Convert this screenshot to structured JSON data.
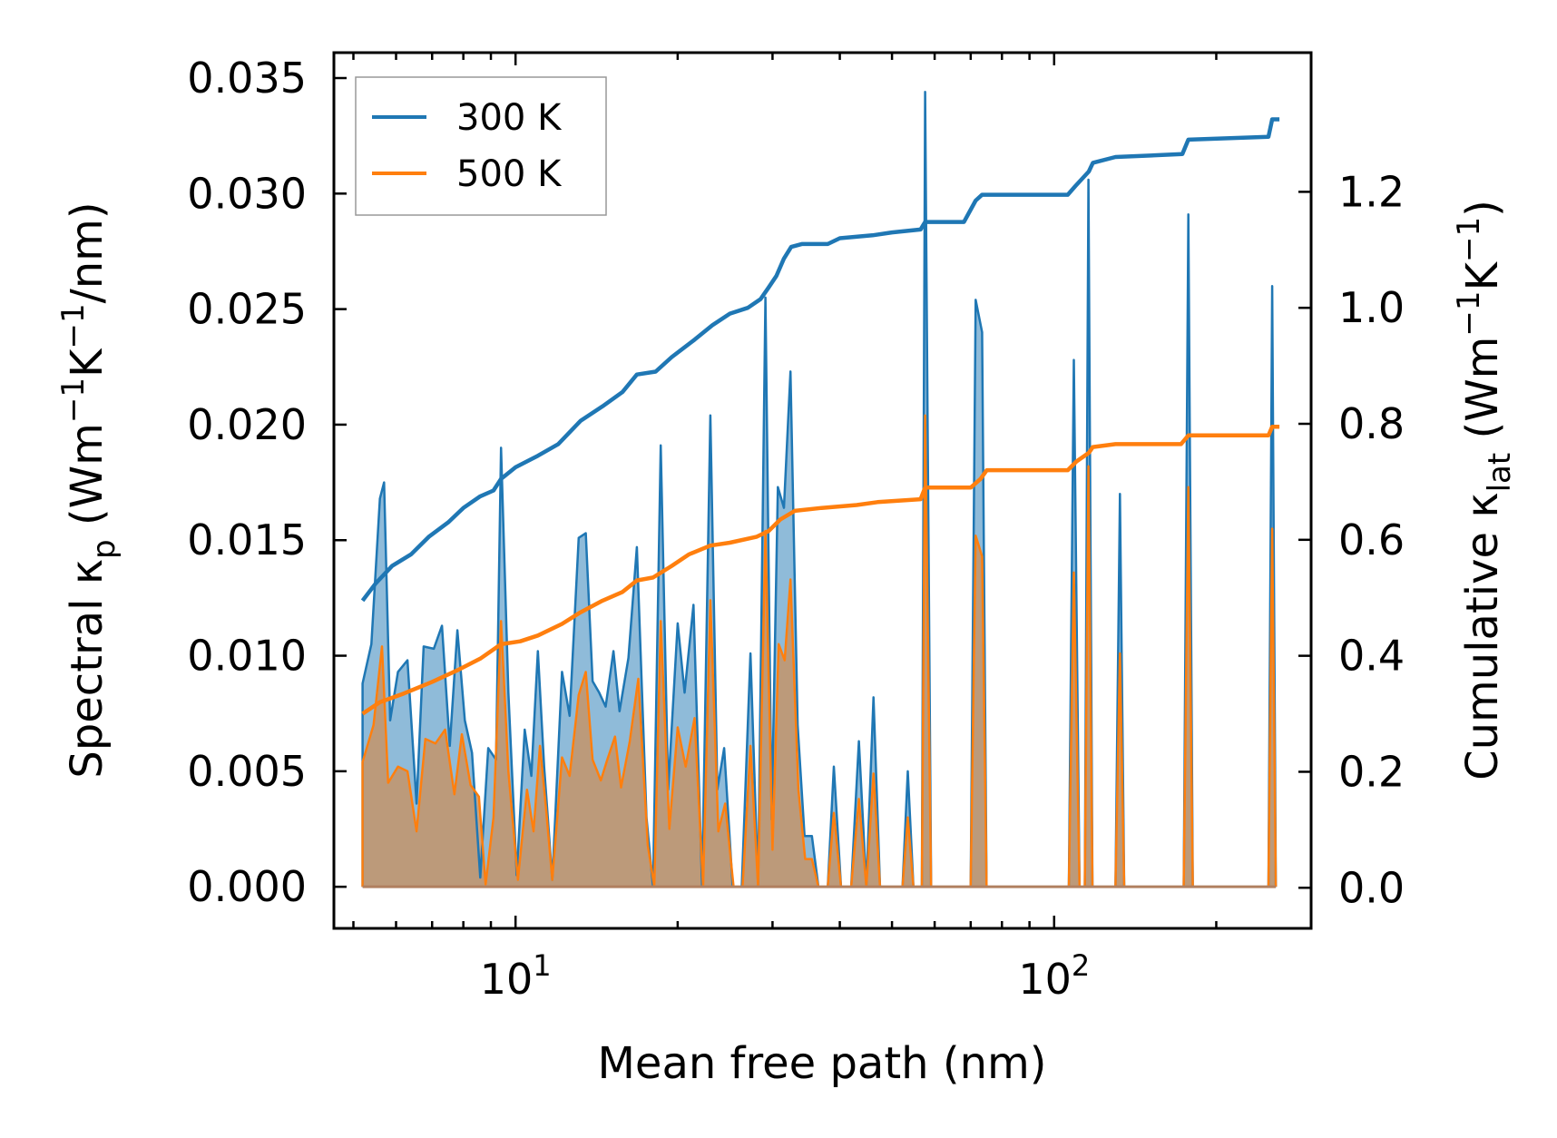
{
  "chart_data": {
    "type": "line",
    "x_scale": "log",
    "xlim": [
      4.6,
      300
    ],
    "xlabel": "Mean free path (nm)",
    "x_major_ticks": [
      10,
      100
    ],
    "x_tick_labels": {
      "base": "10",
      "exponents": [
        "1",
        "2"
      ]
    },
    "left_axis": {
      "ylim": [
        -0.0018,
        0.0361
      ],
      "ticks": [
        0,
        0.005,
        0.01,
        0.015,
        0.02,
        0.025,
        0.03,
        0.035
      ],
      "tick_labels": [
        "0.000",
        "0.005",
        "0.010",
        "0.015",
        "0.020",
        "0.025",
        "0.030",
        "0.035"
      ],
      "ylabel": {
        "pre": "Spectral κ",
        "sub": "p",
        "mid1": " (Wm",
        "sup1": "−1",
        "mid2": "K",
        "sup2": "−1",
        "post": "/nm)"
      }
    },
    "right_axis": {
      "ylim": [
        -0.07,
        1.44
      ],
      "ticks": [
        0,
        0.2,
        0.4,
        0.6,
        0.8,
        1.0,
        1.2
      ],
      "tick_labels": [
        "0.0",
        "0.2",
        "0.4",
        "0.6",
        "0.8",
        "1.0",
        "1.2"
      ],
      "ylabel": {
        "pre": "Cumulative κ",
        "sub": "lat",
        "mid1": " (Wm",
        "sup1": "−1",
        "mid2": "K",
        "sup2": "−1",
        "post": ")"
      }
    },
    "legend": {
      "position": "top-left",
      "entries": [
        "300 K",
        "500 K"
      ]
    },
    "series": [
      {
        "name": "300 K",
        "color": "#1f77b4",
        "fill_color": "#1f77b4",
        "axis": "left",
        "kind": "spectral",
        "points": [
          [
            5.2,
            0
          ],
          [
            5.2,
            0.0088
          ],
          [
            5.4,
            0.0105
          ],
          [
            5.6,
            0.0168
          ],
          [
            5.7,
            0.0175
          ],
          [
            5.85,
            0.0072
          ],
          [
            6.05,
            0.0093
          ],
          [
            6.3,
            0.0098
          ],
          [
            6.55,
            0.0036
          ],
          [
            6.75,
            0.0104
          ],
          [
            7.05,
            0.0103
          ],
          [
            7.3,
            0.0113
          ],
          [
            7.55,
            0.0061
          ],
          [
            7.8,
            0.0111
          ],
          [
            8.05,
            0.0072
          ],
          [
            8.3,
            0.0058
          ],
          [
            8.6,
            0.0004
          ],
          [
            8.9,
            0.006
          ],
          [
            9.2,
            0.0055
          ],
          [
            9.4,
            0.019
          ],
          [
            9.7,
            0.0084
          ],
          [
            10.05,
            0.0005
          ],
          [
            10.4,
            0.0068
          ],
          [
            10.7,
            0.0048
          ],
          [
            11.0,
            0.0102
          ],
          [
            11.3,
            0.0052
          ],
          [
            11.7,
            0.0003
          ],
          [
            12.2,
            0.0093
          ],
          [
            12.6,
            0.0074
          ],
          [
            13.1,
            0.0151
          ],
          [
            13.5,
            0.0153
          ],
          [
            13.9,
            0.0089
          ],
          [
            14.3,
            0.0084
          ],
          [
            14.7,
            0.0078
          ],
          [
            15.2,
            0.0102
          ],
          [
            15.6,
            0.0076
          ],
          [
            16.2,
            0.0099
          ],
          [
            16.8,
            0.0147
          ],
          [
            17.5,
            0.003
          ],
          [
            18.0,
            0
          ],
          [
            18.6,
            0.0191
          ],
          [
            19.2,
            0.0042
          ],
          [
            20.0,
            0.0114
          ],
          [
            20.6,
            0.0084
          ],
          [
            21.4,
            0.0122
          ],
          [
            22.2,
            0
          ],
          [
            23.0,
            0.0204
          ],
          [
            23.7,
            0.0042
          ],
          [
            24.4,
            0.006
          ],
          [
            25.3,
            0
          ],
          [
            26.3,
            0
          ],
          [
            27.3,
            0.0101
          ],
          [
            28.2,
            0
          ],
          [
            29.1,
            0.0255
          ],
          [
            29.9,
            0.0029
          ],
          [
            30.7,
            0.0173
          ],
          [
            31.5,
            0.0164
          ],
          [
            32.4,
            0.0223
          ],
          [
            33.4,
            0.007
          ],
          [
            34.4,
            0.0022
          ],
          [
            35.5,
            0.0022
          ],
          [
            36.5,
            0
          ],
          [
            38.0,
            0
          ],
          [
            39.0,
            0.0052
          ],
          [
            40.2,
            0
          ],
          [
            42.0,
            0
          ],
          [
            43.4,
            0.0063
          ],
          [
            44.8,
            0
          ],
          [
            46.2,
            0.0082
          ],
          [
            47.5,
            0
          ],
          [
            52.3,
            0
          ],
          [
            53.5,
            0.005
          ],
          [
            54.8,
            0
          ],
          [
            56.8,
            0
          ],
          [
            57.6,
            0.0344
          ],
          [
            59.1,
            0
          ],
          [
            70.0,
            0
          ],
          [
            71.5,
            0.0254
          ],
          [
            73.5,
            0.024
          ],
          [
            74.9,
            0
          ],
          [
            106.5,
            0
          ],
          [
            108.8,
            0.0228
          ],
          [
            111.5,
            0
          ],
          [
            114.0,
            0
          ],
          [
            115.8,
            0.0306
          ],
          [
            117.8,
            0
          ],
          [
            130.0,
            0
          ],
          [
            132.5,
            0.017
          ],
          [
            134.9,
            0
          ],
          [
            174.0,
            0
          ],
          [
            177.5,
            0.0291
          ],
          [
            180.9,
            0
          ],
          [
            250.0,
            0
          ],
          [
            254.0,
            0.026
          ],
          [
            258.0,
            0
          ]
        ]
      },
      {
        "name": "500 K",
        "color": "#ff7f0e",
        "fill_color": "#c49468",
        "axis": "left",
        "kind": "spectral",
        "points": [
          [
            5.2,
            0
          ],
          [
            5.2,
            0.0054
          ],
          [
            5.45,
            0.007
          ],
          [
            5.65,
            0.0104
          ],
          [
            5.8,
            0.0045
          ],
          [
            6.05,
            0.0052
          ],
          [
            6.3,
            0.005
          ],
          [
            6.55,
            0.0024
          ],
          [
            6.8,
            0.0064
          ],
          [
            7.1,
            0.0062
          ],
          [
            7.4,
            0.0068
          ],
          [
            7.7,
            0.004
          ],
          [
            7.95,
            0.0066
          ],
          [
            8.25,
            0.0044
          ],
          [
            8.55,
            0.0039
          ],
          [
            8.8,
            0.0001
          ],
          [
            9.1,
            0.003
          ],
          [
            9.4,
            0.0115
          ],
          [
            9.7,
            0.005
          ],
          [
            10.1,
            0.0003
          ],
          [
            10.5,
            0.0042
          ],
          [
            10.8,
            0.0024
          ],
          [
            11.1,
            0.0061
          ],
          [
            11.4,
            0.0033
          ],
          [
            11.7,
            0.0003
          ],
          [
            12.2,
            0.0056
          ],
          [
            12.6,
            0.0048
          ],
          [
            13.1,
            0.0083
          ],
          [
            13.5,
            0.0093
          ],
          [
            13.9,
            0.0055
          ],
          [
            14.4,
            0.0046
          ],
          [
            14.8,
            0.0055
          ],
          [
            15.3,
            0.0065
          ],
          [
            15.7,
            0.0043
          ],
          [
            16.3,
            0.0063
          ],
          [
            16.9,
            0.009
          ],
          [
            17.6,
            0.0018
          ],
          [
            18.1,
            0
          ],
          [
            18.6,
            0.0115
          ],
          [
            19.3,
            0.0025
          ],
          [
            20.0,
            0.0069
          ],
          [
            20.7,
            0.0052
          ],
          [
            21.5,
            0.0073
          ],
          [
            22.3,
            0
          ],
          [
            23.0,
            0.0124
          ],
          [
            23.8,
            0.0024
          ],
          [
            24.5,
            0.0036
          ],
          [
            25.4,
            0
          ],
          [
            26.4,
            0
          ],
          [
            27.3,
            0.0061
          ],
          [
            28.2,
            0
          ],
          [
            29.1,
            0.0154
          ],
          [
            30.0,
            0.0016
          ],
          [
            30.8,
            0.0105
          ],
          [
            31.6,
            0.0098
          ],
          [
            32.4,
            0.0133
          ],
          [
            33.5,
            0.0042
          ],
          [
            34.5,
            0.0012
          ],
          [
            35.5,
            0.0012
          ],
          [
            36.5,
            0
          ],
          [
            38.0,
            0
          ],
          [
            39.0,
            0.0032
          ],
          [
            40.2,
            0
          ],
          [
            42.0,
            0
          ],
          [
            43.4,
            0.0038
          ],
          [
            44.8,
            0
          ],
          [
            46.2,
            0.0049
          ],
          [
            47.5,
            0
          ],
          [
            52.3,
            0
          ],
          [
            53.5,
            0.003
          ],
          [
            54.8,
            0
          ],
          [
            56.8,
            0
          ],
          [
            57.6,
            0.0204
          ],
          [
            59.1,
            0
          ],
          [
            70.0,
            0
          ],
          [
            71.5,
            0.0152
          ],
          [
            73.5,
            0.0143
          ],
          [
            74.9,
            0
          ],
          [
            106.5,
            0
          ],
          [
            108.8,
            0.0136
          ],
          [
            111.5,
            0
          ],
          [
            114.0,
            0
          ],
          [
            115.8,
            0.0182
          ],
          [
            117.8,
            0
          ],
          [
            130.0,
            0
          ],
          [
            132.5,
            0.0101
          ],
          [
            134.9,
            0
          ],
          [
            174.0,
            0
          ],
          [
            177.5,
            0.0173
          ],
          [
            180.9,
            0
          ],
          [
            250.0,
            0
          ],
          [
            254.0,
            0.0155
          ],
          [
            258.0,
            0
          ]
        ]
      },
      {
        "name": "300 K",
        "color": "#1f77b4",
        "axis": "right",
        "kind": "cumulative",
        "points": [
          [
            5.2,
            0.495
          ],
          [
            5.5,
            0.525
          ],
          [
            5.9,
            0.555
          ],
          [
            6.4,
            0.575
          ],
          [
            6.9,
            0.605
          ],
          [
            7.5,
            0.63
          ],
          [
            8.0,
            0.655
          ],
          [
            8.6,
            0.675
          ],
          [
            9.1,
            0.685
          ],
          [
            9.4,
            0.705
          ],
          [
            10.0,
            0.725
          ],
          [
            11.0,
            0.745
          ],
          [
            12.0,
            0.765
          ],
          [
            13.2,
            0.805
          ],
          [
            14.5,
            0.83
          ],
          [
            15.8,
            0.855
          ],
          [
            16.8,
            0.885
          ],
          [
            18.2,
            0.89
          ],
          [
            19.5,
            0.915
          ],
          [
            21.5,
            0.945
          ],
          [
            23.2,
            0.97
          ],
          [
            25.0,
            0.99
          ],
          [
            27.0,
            1.0
          ],
          [
            28.5,
            1.015
          ],
          [
            29.5,
            1.035
          ],
          [
            30.5,
            1.055
          ],
          [
            31.5,
            1.085
          ],
          [
            32.5,
            1.105
          ],
          [
            34.0,
            1.11
          ],
          [
            38.0,
            1.11
          ],
          [
            40.0,
            1.12
          ],
          [
            46.0,
            1.125
          ],
          [
            50.0,
            1.13
          ],
          [
            56.5,
            1.135
          ],
          [
            57.6,
            1.148
          ],
          [
            68.0,
            1.148
          ],
          [
            71.5,
            1.185
          ],
          [
            73.5,
            1.195
          ],
          [
            106.0,
            1.195
          ],
          [
            109.5,
            1.21
          ],
          [
            116.0,
            1.235
          ],
          [
            118.0,
            1.25
          ],
          [
            130.0,
            1.26
          ],
          [
            173.0,
            1.265
          ],
          [
            177.5,
            1.29
          ],
          [
            250.0,
            1.295
          ],
          [
            254.0,
            1.325
          ],
          [
            262.0,
            1.325
          ]
        ]
      },
      {
        "name": "500 K",
        "color": "#ff7f0e",
        "axis": "right",
        "kind": "cumulative",
        "points": [
          [
            5.2,
            0.3
          ],
          [
            5.6,
            0.32
          ],
          [
            6.2,
            0.335
          ],
          [
            7.0,
            0.355
          ],
          [
            7.8,
            0.375
          ],
          [
            8.6,
            0.395
          ],
          [
            9.4,
            0.42
          ],
          [
            10.2,
            0.425
          ],
          [
            11.0,
            0.435
          ],
          [
            12.2,
            0.455
          ],
          [
            13.2,
            0.475
          ],
          [
            14.5,
            0.495
          ],
          [
            15.8,
            0.51
          ],
          [
            16.8,
            0.53
          ],
          [
            18.0,
            0.535
          ],
          [
            19.5,
            0.555
          ],
          [
            21.0,
            0.575
          ],
          [
            23.0,
            0.59
          ],
          [
            25.0,
            0.595
          ],
          [
            28.0,
            0.605
          ],
          [
            29.5,
            0.615
          ],
          [
            31.0,
            0.635
          ],
          [
            33.0,
            0.65
          ],
          [
            37.0,
            0.655
          ],
          [
            43.0,
            0.66
          ],
          [
            47.0,
            0.665
          ],
          [
            56.5,
            0.67
          ],
          [
            57.6,
            0.69
          ],
          [
            70.0,
            0.69
          ],
          [
            73.0,
            0.705
          ],
          [
            75.0,
            0.72
          ],
          [
            106.0,
            0.72
          ],
          [
            110.0,
            0.735
          ],
          [
            116.0,
            0.75
          ],
          [
            118.0,
            0.76
          ],
          [
            130.0,
            0.765
          ],
          [
            172.0,
            0.765
          ],
          [
            177.5,
            0.78
          ],
          [
            250.0,
            0.78
          ],
          [
            254.0,
            0.795
          ],
          [
            262.0,
            0.795
          ]
        ]
      }
    ]
  }
}
